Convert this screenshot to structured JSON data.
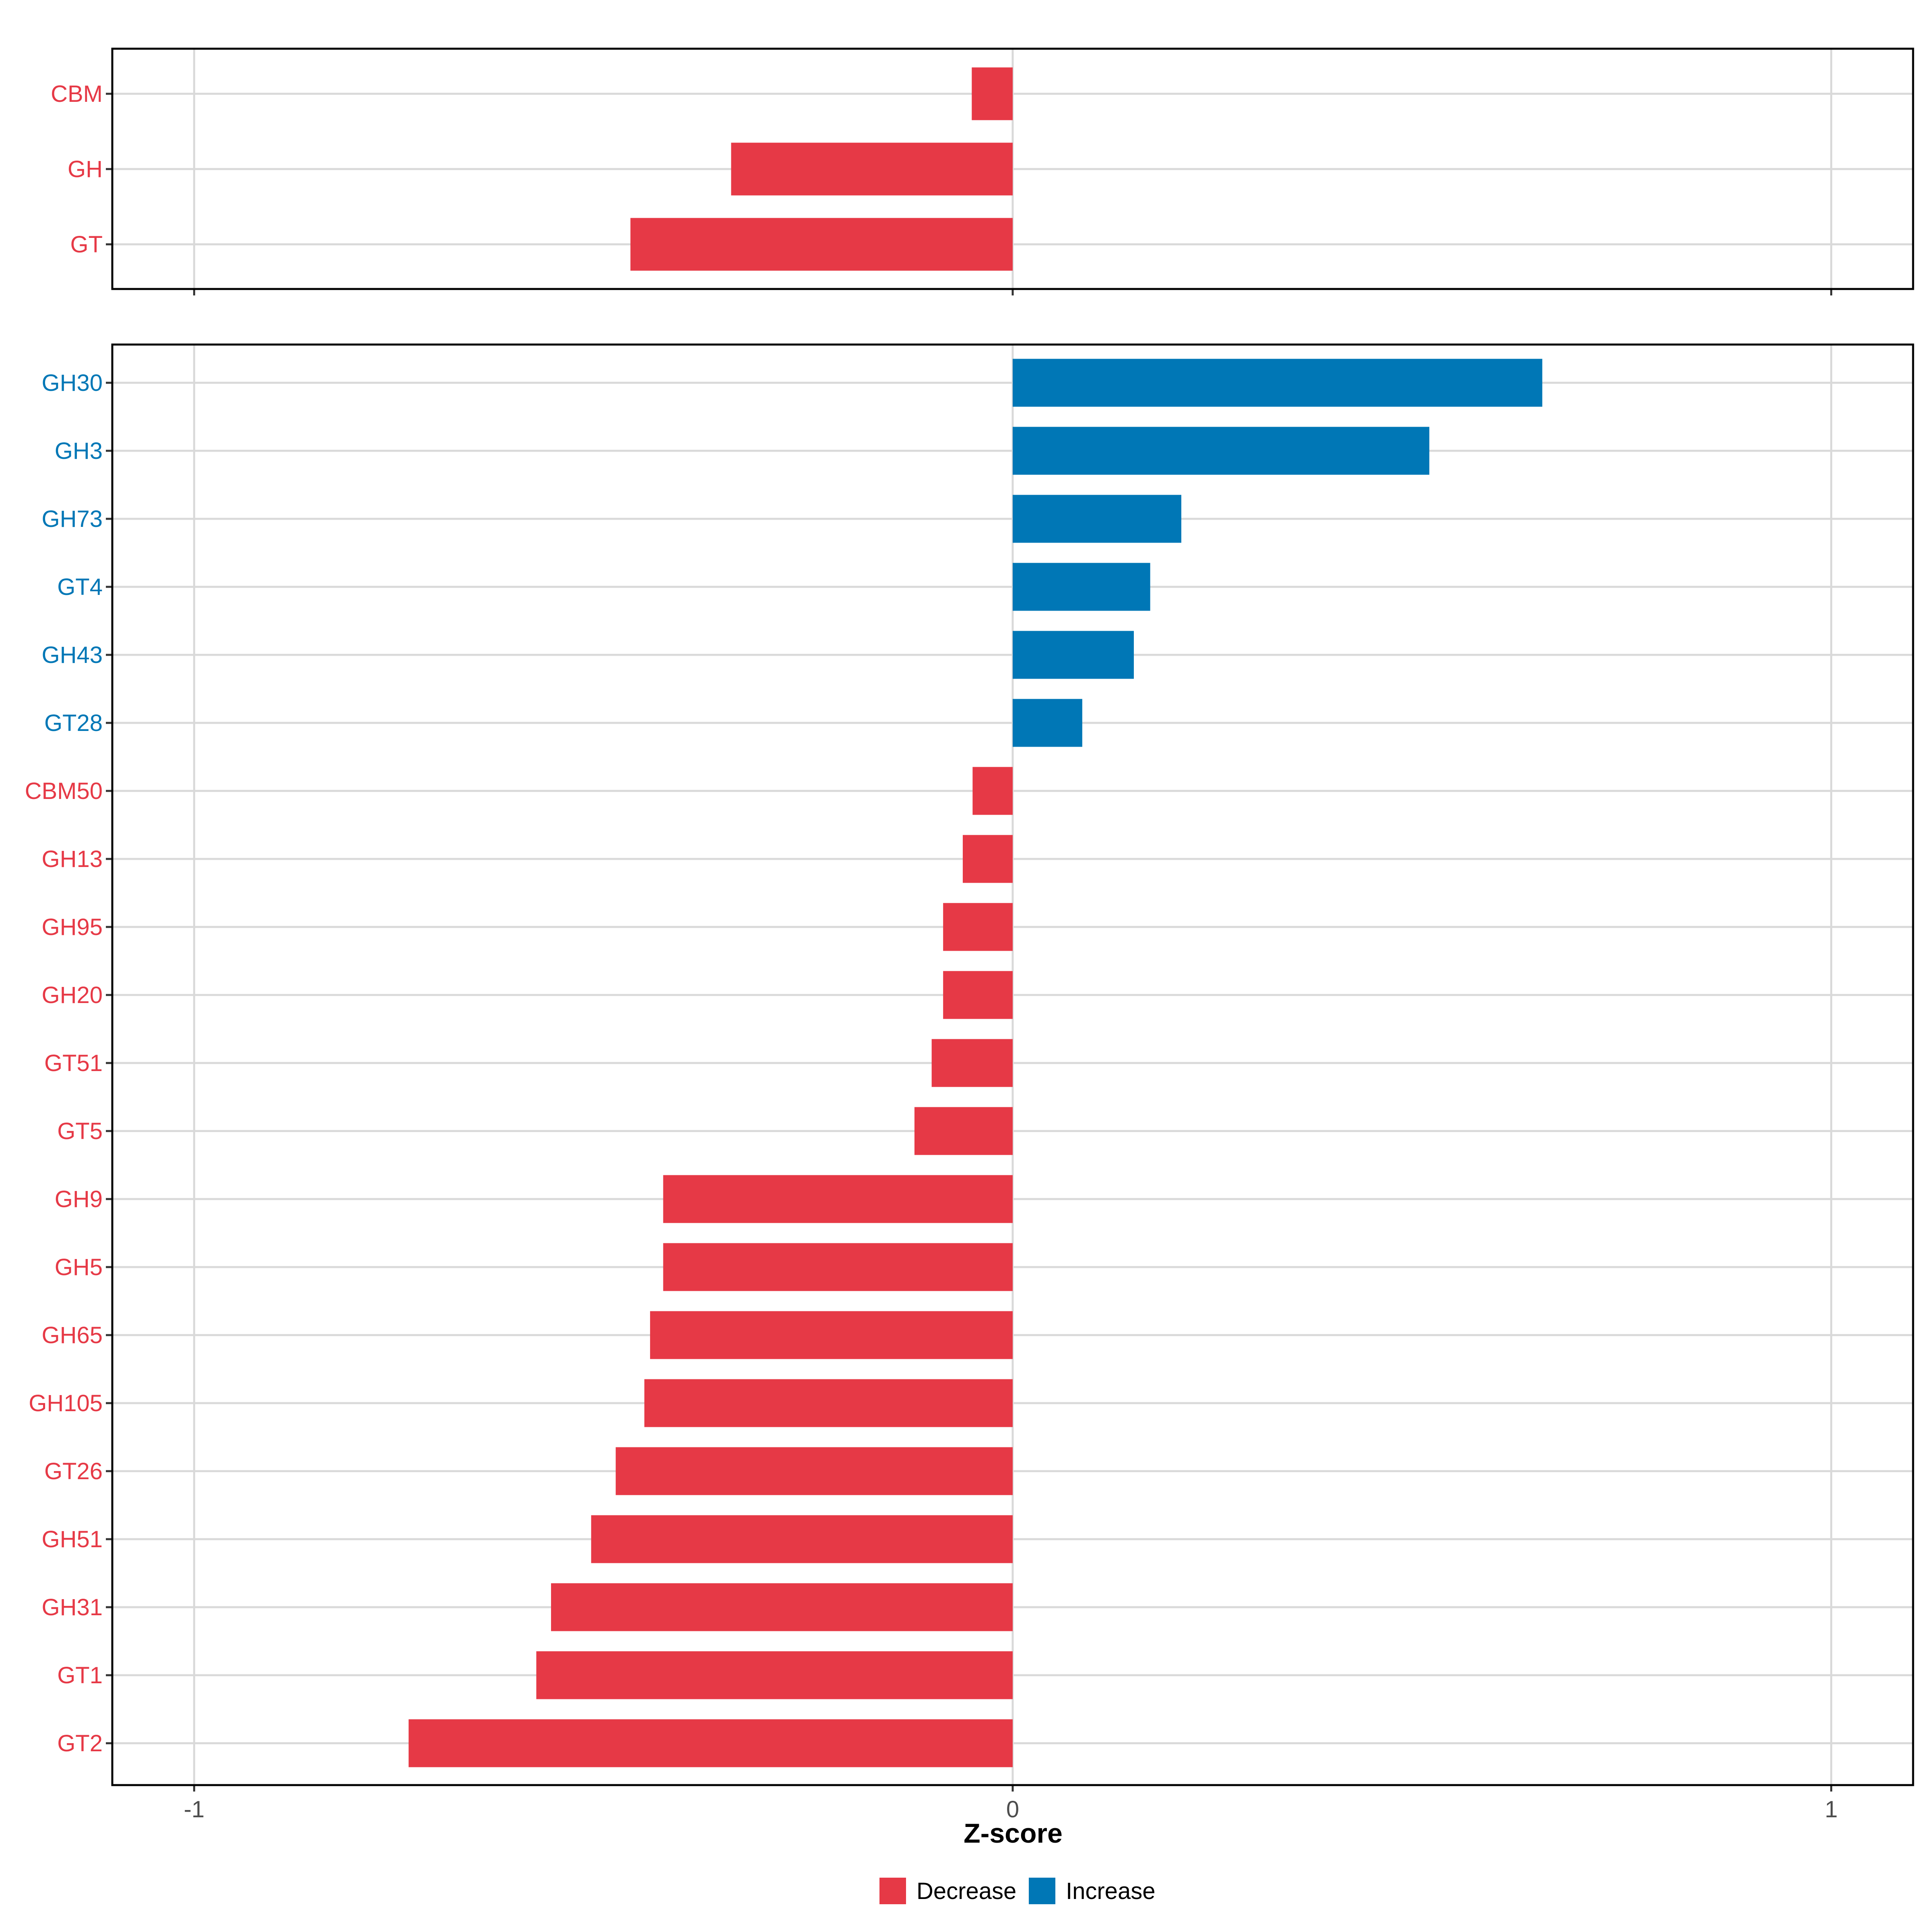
{
  "colors": {
    "decrease": "#e63946",
    "increase": "#0077b6",
    "grid": "#d9d9d9",
    "axis": "#333333",
    "background": "#ffffff"
  },
  "chart_data": [
    {
      "type": "bar",
      "orientation": "horizontal",
      "panel": "top",
      "categories": [
        "CBM",
        "GH",
        "GT"
      ],
      "values": [
        -0.05,
        -0.344,
        -0.467
      ],
      "direction": [
        "Decrease",
        "Decrease",
        "Decrease"
      ],
      "xlim": [
        -1.1,
        1.1
      ],
      "xticks": [
        "-1",
        "0",
        "1"
      ],
      "grid": true
    },
    {
      "type": "bar",
      "orientation": "horizontal",
      "panel": "bottom",
      "categories": [
        "GH30",
        "GH3",
        "GH73",
        "GT4",
        "GH43",
        "GT28",
        "CBM50",
        "GH13",
        "GH95",
        "GH20",
        "GT51",
        "GT5",
        "GH9",
        "GH5",
        "GH65",
        "GH105",
        "GT26",
        "GH51",
        "GH31",
        "GT1",
        "GT2"
      ],
      "values": [
        0.647,
        0.509,
        0.206,
        0.168,
        0.148,
        0.085,
        -0.049,
        -0.061,
        -0.085,
        -0.085,
        -0.099,
        -0.12,
        -0.427,
        -0.427,
        -0.443,
        -0.45,
        -0.485,
        -0.515,
        -0.564,
        -0.582,
        -0.738
      ],
      "direction": [
        "Increase",
        "Increase",
        "Increase",
        "Increase",
        "Increase",
        "Increase",
        "Decrease",
        "Decrease",
        "Decrease",
        "Decrease",
        "Decrease",
        "Decrease",
        "Decrease",
        "Decrease",
        "Decrease",
        "Decrease",
        "Decrease",
        "Decrease",
        "Decrease",
        "Decrease",
        "Decrease"
      ],
      "xlim": [
        -1.1,
        1.1
      ],
      "xticks": [
        "-1",
        "0",
        "1"
      ],
      "xlabel": "Z-score",
      "grid": true
    }
  ],
  "legend": {
    "position": "bottom",
    "items": [
      {
        "label": "Decrease",
        "color": "#e63946"
      },
      {
        "label": "Increase",
        "color": "#0077b6"
      }
    ]
  }
}
